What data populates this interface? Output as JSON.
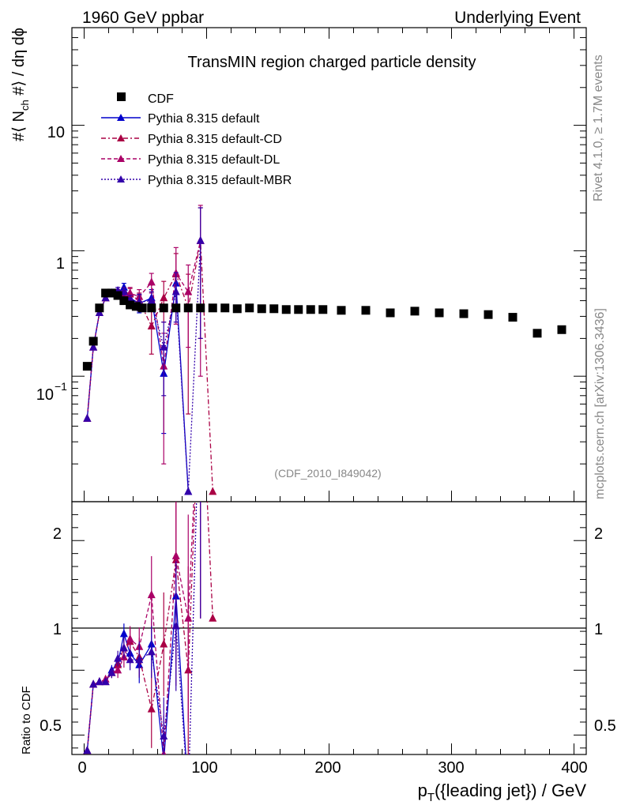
{
  "chart_data": {
    "type": "scatter",
    "header_left": "1960 GeV ppbar",
    "header_right": "Underlying Event",
    "title": "TransMIN region charged particle density",
    "analysis_tag": "(CDF_2010_I849042)",
    "side_label_rivet": "Rivet 4.1.0, ≥ 1.7M events",
    "side_label_site": "mcplots.cern.ch [arXiv:1306.3436]",
    "xlabel": "p_T({leading jet}) / GeV",
    "xlabel_parts": {
      "p": "p",
      "sub": "T",
      "rest": "({leading jet}) / GeV"
    },
    "ylabel_main": "#⟨ N_ch #⟩ / dη dϕ",
    "ylabel_parts": {
      "a": "#⟨ N",
      "sub": "ch",
      "b": " #⟩ / dη dϕ"
    },
    "ylabel_ratio": "Ratio to CDF",
    "xlim": [
      -10,
      410
    ],
    "ylim_main": [
      0.01,
      60
    ],
    "ylim_ratio": [
      0.35,
      2.3
    ],
    "x_ticks": [
      "0",
      "100",
      "200",
      "300",
      "400"
    ],
    "y_ticks_main": [
      "10",
      "1",
      "10"
    ],
    "y_tick_main_exp": "−1",
    "y_ticks_ratio": [
      "2",
      "1",
      "0.5"
    ],
    "y_ticks_ratio_right": [
      "2",
      "1",
      "0.5"
    ],
    "legend": [
      {
        "label": "CDF",
        "color": "#000000",
        "style": "marker"
      },
      {
        "label": "Pythia 8.315 default",
        "color": "#0000cc",
        "style": "solid"
      },
      {
        "label": "Pythia 8.315 default-CD",
        "color": "#aa0044",
        "style": "dashdot"
      },
      {
        "label": "Pythia 8.315 default-DL",
        "color": "#aa0066",
        "style": "dashed"
      },
      {
        "label": "Pythia 8.315 default-MBR",
        "color": "#3300aa",
        "style": "dotted"
      }
    ],
    "data": {
      "name": "CDF",
      "x": [
        2.5,
        7.5,
        12.5,
        17.5,
        22.5,
        27.5,
        32.5,
        37.5,
        42.5,
        47.5,
        55,
        65,
        75,
        85,
        95,
        105,
        115,
        125,
        135,
        145,
        155,
        165,
        175,
        185,
        195,
        210,
        230,
        250,
        270,
        290,
        310,
        330,
        350,
        370,
        390
      ],
      "y": [
        0.12,
        0.19,
        0.35,
        0.46,
        0.46,
        0.44,
        0.4,
        0.37,
        0.36,
        0.35,
        0.35,
        0.35,
        0.35,
        0.35,
        0.35,
        0.35,
        0.35,
        0.345,
        0.35,
        0.345,
        0.345,
        0.34,
        0.34,
        0.34,
        0.34,
        0.335,
        0.335,
        0.32,
        0.33,
        0.32,
        0.315,
        0.31,
        0.295,
        0.22,
        0.235
      ]
    },
    "series": [
      {
        "name": "Pythia 8.315 default",
        "color": "#0000cc",
        "dash": "",
        "x": [
          2.5,
          7.5,
          12.5,
          17.5,
          22.5,
          27.5,
          32.5,
          37.5,
          45,
          55,
          65,
          75,
          85
        ],
        "y": [
          0.046,
          0.17,
          0.32,
          0.42,
          0.46,
          0.46,
          0.51,
          0.42,
          0.38,
          0.42,
          0.105,
          0.55,
          0.012
        ],
        "err": [
          0,
          0,
          0,
          0,
          0.02,
          0.03,
          0.04,
          0.04,
          0.06,
          0.07,
          0.07,
          0.1,
          0
        ],
        "ratio": [
          0.38,
          0.89,
          0.91,
          0.91,
          1.0,
          1.05,
          1.28,
          1.13,
          1.04,
          1.2,
          0.3,
          1.57,
          0.03
        ],
        "ratio_err": [
          0,
          0,
          0,
          0,
          0.04,
          0.06,
          0.08,
          0.08,
          0.14,
          0.2,
          0.2,
          0.3,
          0
        ]
      },
      {
        "name": "Pythia 8.315 default-CD",
        "color": "#aa0044",
        "dash": "6,3,2,3",
        "x": [
          2.5,
          7.5,
          12.5,
          17.5,
          22.5,
          27.5,
          32.5,
          37.5,
          45,
          55,
          65,
          75,
          85,
          95,
          105
        ],
        "y": [
          0.046,
          0.17,
          0.32,
          0.42,
          0.45,
          0.46,
          0.47,
          0.45,
          0.4,
          0.25,
          0.42,
          0.65,
          0.35,
          1.2,
          0.012
        ],
        "err": [
          0,
          0,
          0,
          0,
          0.02,
          0.03,
          0.04,
          0.05,
          0.06,
          0.1,
          0.15,
          0.3,
          0.3,
          1.0,
          0
        ],
        "ratio": [
          0.38,
          0.89,
          0.91,
          0.91,
          0.98,
          1.04,
          1.17,
          1.22,
          1.1,
          0.7,
          1.2,
          1.85,
          1.0,
          3.4,
          1.4
        ],
        "ratio_err": [
          0,
          0,
          0,
          0,
          0.04,
          0.06,
          0.08,
          0.1,
          0.15,
          0.3,
          0.4,
          0.8,
          0.8,
          2.0,
          0
        ]
      },
      {
        "name": "Pythia 8.315 default-DL",
        "color": "#aa0066",
        "dash": "5,3",
        "x": [
          2.5,
          7.5,
          12.5,
          17.5,
          22.5,
          27.5,
          32.5,
          37.5,
          45,
          55,
          65,
          75,
          85,
          95
        ],
        "y": [
          0.046,
          0.17,
          0.32,
          0.42,
          0.45,
          0.44,
          0.44,
          0.46,
          0.43,
          0.56,
          0.12,
          0.66,
          0.47,
          1.2
        ],
        "err": [
          0,
          0,
          0,
          0,
          0.02,
          0.03,
          0.04,
          0.05,
          0.06,
          0.1,
          0.1,
          0.4,
          0.3,
          1.1
        ],
        "ratio": [
          0.38,
          0.89,
          0.91,
          0.93,
          0.98,
          1.0,
          1.1,
          1.24,
          1.18,
          1.58,
          0.35,
          1.88,
          1.4,
          3.4
        ],
        "ratio_err": [
          0,
          0,
          0,
          0,
          0.04,
          0.06,
          0.08,
          0.1,
          0.15,
          0.3,
          0.3,
          1.0,
          0.8,
          2.0
        ]
      },
      {
        "name": "Pythia 8.315 default-MBR",
        "color": "#3300aa",
        "dash": "2,2",
        "x": [
          2.5,
          7.5,
          12.5,
          17.5,
          22.5,
          27.5,
          32.5,
          37.5,
          45,
          55,
          65,
          75,
          85,
          95
        ],
        "y": [
          0.046,
          0.17,
          0.32,
          0.42,
          0.45,
          0.48,
          0.47,
          0.4,
          0.39,
          0.4,
          0.17,
          0.47,
          0.012,
          1.2
        ],
        "err": [
          0,
          0,
          0,
          0,
          0.02,
          0.03,
          0.04,
          0.04,
          0.06,
          0.07,
          0.1,
          0.2,
          0,
          1.0
        ],
        "ratio": [
          0.38,
          0.89,
          0.91,
          0.91,
          0.98,
          1.09,
          1.17,
          1.08,
          1.08,
          1.14,
          0.49,
          1.34,
          0.03,
          3.4
        ],
        "ratio_err": [
          0,
          0,
          0,
          0,
          0.04,
          0.06,
          0.08,
          0.08,
          0.14,
          0.2,
          0.3,
          0.5,
          0,
          2.0
        ]
      }
    ]
  }
}
